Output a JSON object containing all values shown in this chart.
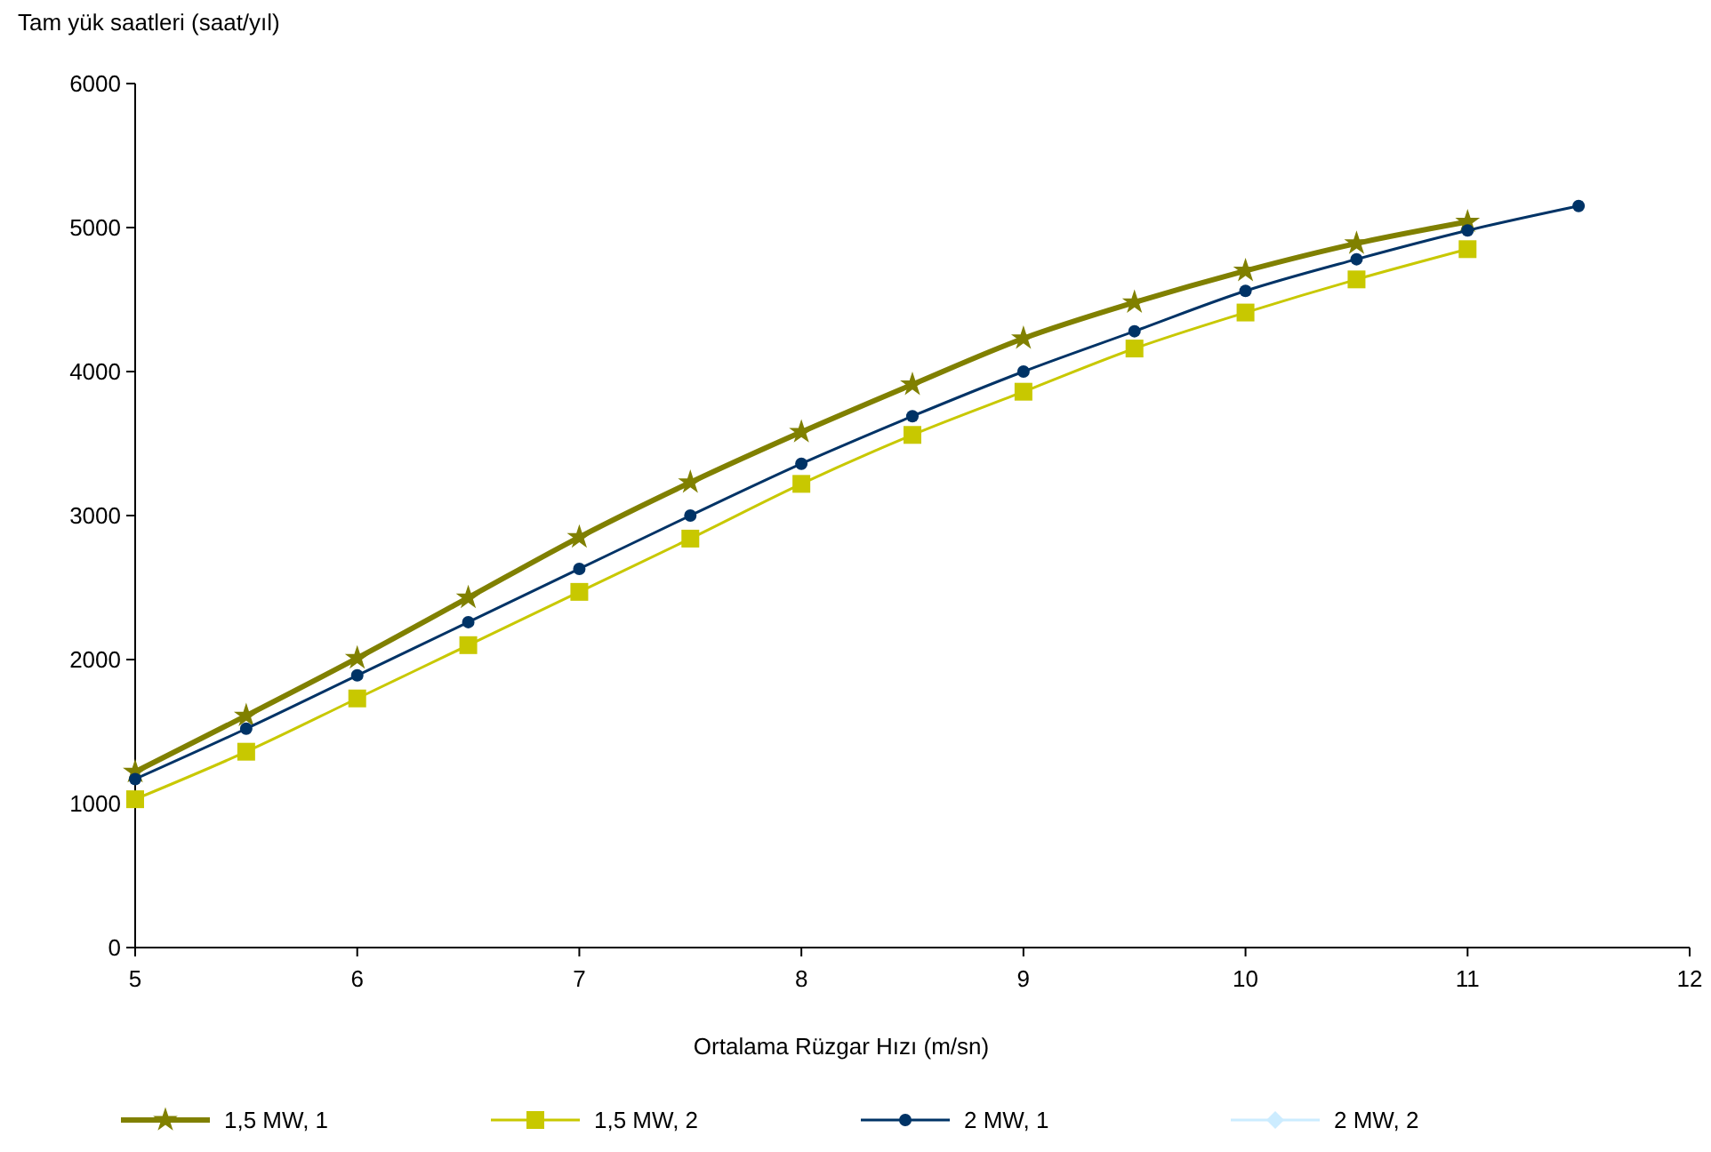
{
  "chart_data": {
    "type": "line",
    "xlabel": "Ortalama Rüzgar Hızı (m/sn)",
    "ylabel": "Tam yük saatleri (saat/yıl)",
    "x": [
      5,
      5.5,
      6,
      6.5,
      7,
      7.5,
      8,
      8.5,
      9,
      9.5,
      10,
      10.5,
      11,
      11.5
    ],
    "xlim": [
      5,
      12
    ],
    "xticks": [
      5,
      6,
      7,
      8,
      9,
      10,
      11,
      12
    ],
    "ylim": [
      0,
      6000
    ],
    "yticks": [
      0,
      1000,
      2000,
      3000,
      4000,
      5000,
      6000
    ],
    "grid": false,
    "legend": "bottom",
    "line_style": "solid",
    "series": [
      {
        "name": "1,5 MW, 1",
        "color": "#808000",
        "marker": "star",
        "values": [
          1220,
          1610,
          2010,
          2430,
          2850,
          3230,
          3580,
          3910,
          4230,
          4480,
          4700,
          4890,
          5040,
          null
        ]
      },
      {
        "name": "1,5 MW, 2",
        "color": "#c8c800",
        "marker": "square",
        "values": [
          1030,
          1360,
          1730,
          2100,
          2470,
          2840,
          3220,
          3560,
          3860,
          4160,
          4410,
          4640,
          4850,
          null
        ]
      },
      {
        "name": "2 MW, 1",
        "color": "#003366",
        "marker": "circle",
        "values": [
          1170,
          1520,
          1890,
          2260,
          2630,
          3000,
          3360,
          3690,
          4000,
          4280,
          4560,
          4780,
          4980,
          5150
        ]
      },
      {
        "name": "2 MW, 2",
        "color": "#ccecff",
        "marker": "diamond",
        "values": [
          null,
          null,
          null,
          null,
          null,
          null,
          null,
          null,
          null,
          null,
          null,
          null,
          null,
          null
        ]
      }
    ]
  }
}
